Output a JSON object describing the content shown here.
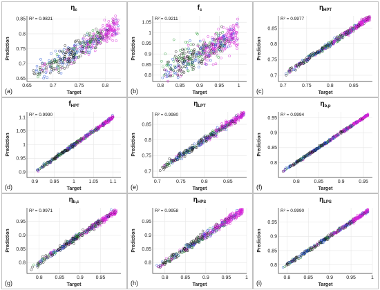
{
  "figure": {
    "background": "#ffffff"
  },
  "legend_colors": [
    "#1a1a1a",
    "#1f4fd1",
    "#2e9e3a",
    "#d61fd6"
  ],
  "chart_data": [
    {
      "type": "scatter",
      "panel": "(a)",
      "title_main": "η",
      "title_sub": "c",
      "r2": "R² = 0.9821",
      "xlabel": "Target",
      "ylabel": "Prediction",
      "xlim": [
        0.65,
        0.83
      ],
      "ylim": [
        0.64,
        0.86
      ],
      "xticks": [
        0.65,
        0.7,
        0.75,
        0.8
      ],
      "yticks": [
        0.65,
        0.7,
        0.75,
        0.8,
        0.85
      ],
      "xtick_labels": [
        "0.65",
        "0.7",
        "0.75",
        "0.8"
      ],
      "ytick_labels": [
        "0.65",
        "0.7",
        "0.75",
        "0.8",
        "0.85"
      ],
      "x_range": [
        0.66,
        0.825
      ],
      "spread": 0.018,
      "n_points": 460
    },
    {
      "type": "scatter",
      "panel": "(b)",
      "title_main": "f",
      "title_sub": "c",
      "r2": "R² = 0.9211",
      "xlabel": "Target",
      "ylabel": "Prediction",
      "xlim": [
        0.78,
        1.02
      ],
      "ylim": [
        0.77,
        1.08
      ],
      "xticks": [
        0.8,
        0.85,
        0.9,
        0.95,
        1
      ],
      "yticks": [
        0.8,
        0.85,
        0.9,
        0.95,
        1,
        1.05
      ],
      "xtick_labels": [
        "0.8",
        "0.85",
        "0.9",
        "0.95",
        "1"
      ],
      "ytick_labels": [
        "0.8",
        "0.85",
        "0.9",
        "0.95",
        "1",
        "1.05"
      ],
      "x_range": [
        0.8,
        1.0
      ],
      "spread": 0.03,
      "n_points": 480,
      "outliers": true
    },
    {
      "type": "scatter",
      "panel": "(c)",
      "title_main": "η",
      "title_sub": "HPT",
      "r2": "R² = 0.9977",
      "xlabel": "Target",
      "ylabel": "Prediction",
      "xlim": [
        0.69,
        0.89
      ],
      "ylim": [
        0.68,
        0.89
      ],
      "xticks": [
        0.7,
        0.75,
        0.8,
        0.85
      ],
      "yticks": [
        0.7,
        0.75,
        0.8,
        0.85
      ],
      "xtick_labels": [
        "0.7",
        "0.75",
        "0.8",
        "0.85"
      ],
      "ytick_labels": [
        "0.7",
        "0.75",
        "0.8",
        "0.85"
      ],
      "x_range": [
        0.705,
        0.885
      ],
      "spread": 0.004,
      "n_points": 420
    },
    {
      "type": "scatter",
      "panel": "(d)",
      "title_main": "f",
      "title_sub": "HPT",
      "r2": "R² = 0.9990",
      "xlabel": "Target",
      "ylabel": "Prediction",
      "xlim": [
        0.88,
        1.12
      ],
      "ylim": [
        0.88,
        1.12
      ],
      "xticks": [
        0.9,
        0.95,
        1,
        1.05,
        1.1
      ],
      "yticks": [
        0.9,
        0.95,
        1,
        1.05,
        1.1
      ],
      "xtick_labels": [
        "0.9",
        "0.95",
        "1",
        "1.05",
        "1.1"
      ],
      "ytick_labels": [
        "0.9",
        "0.95",
        "1",
        "1.05",
        "1.1"
      ],
      "x_range": [
        0.9,
        1.1
      ],
      "spread": 0.003,
      "n_points": 420
    },
    {
      "type": "scatter",
      "panel": "(e)",
      "title_main": "η",
      "title_sub": "LPT",
      "r2": "R² = 0.9980",
      "xlabel": "Target",
      "ylabel": "Prediction",
      "xlim": [
        0.69,
        0.89
      ],
      "ylim": [
        0.68,
        0.89
      ],
      "xticks": [
        0.7,
        0.75,
        0.8,
        0.85
      ],
      "yticks": [
        0.7,
        0.75,
        0.8,
        0.85
      ],
      "xtick_labels": [
        "0.7",
        "0.75",
        "0.8",
        "0.85"
      ],
      "ytick_labels": [
        "0.7",
        "0.75",
        "0.8",
        "0.85"
      ],
      "x_range": [
        0.705,
        0.885
      ],
      "spread": 0.005,
      "n_points": 420
    },
    {
      "type": "scatter",
      "panel": "(f)",
      "title_main": "η",
      "title_sub": "b,p",
      "r2": "R² = 0.9994",
      "xlabel": "Target",
      "ylabel": "Prediction",
      "xlim": [
        0.76,
        0.97
      ],
      "ylim": [
        0.75,
        0.97
      ],
      "xticks": [
        0.8,
        0.85,
        0.9,
        0.95
      ],
      "yticks": [
        0.8,
        0.85,
        0.9,
        0.95
      ],
      "xtick_labels": [
        "0.8",
        "0.85",
        "0.9",
        "0.95"
      ],
      "ytick_labels": [
        "0.8",
        "0.85",
        "0.9",
        "0.95"
      ],
      "x_range": [
        0.77,
        0.96
      ],
      "spread": 0.002,
      "n_points": 420
    },
    {
      "type": "scatter",
      "panel": "(g)",
      "title_main": "η",
      "title_sub": "b,c",
      "r2": "R² = 0.9971",
      "xlabel": "Target",
      "ylabel": "Prediction",
      "xlim": [
        0.77,
        1.0
      ],
      "ylim": [
        0.76,
        1.0
      ],
      "xticks": [
        0.8,
        0.85,
        0.9,
        0.95
      ],
      "yticks": [
        0.8,
        0.85,
        0.9,
        0.95
      ],
      "xtick_labels": [
        "0.8",
        "0.85",
        "0.9",
        "0.95"
      ],
      "ytick_labels": [
        "0.8",
        "0.85",
        "0.9",
        "0.95"
      ],
      "x_range": [
        0.78,
        0.99
      ],
      "spread": 0.005,
      "n_points": 420
    },
    {
      "type": "scatter",
      "panel": "(h)",
      "title_main": "η",
      "title_sub": "HPS",
      "r2": "R² = 0.9958",
      "xlabel": "Target",
      "ylabel": "Prediction",
      "xlim": [
        0.77,
        1.0
      ],
      "ylim": [
        0.76,
        1.0
      ],
      "xticks": [
        0.8,
        0.85,
        0.9,
        0.95,
        1
      ],
      "yticks": [
        0.8,
        0.85,
        0.9,
        0.95
      ],
      "xtick_labels": [
        "0.8",
        "0.85",
        "0.9",
        "0.95",
        "1"
      ],
      "ytick_labels": [
        "0.8",
        "0.85",
        "0.9",
        "0.95"
      ],
      "x_range": [
        0.78,
        0.99
      ],
      "spread": 0.007,
      "n_points": 420
    },
    {
      "type": "scatter",
      "panel": "(i)",
      "title_main": "η",
      "title_sub": "LPS",
      "r2": "R² = 0.9990",
      "xlabel": "Target",
      "ylabel": "Prediction",
      "xlim": [
        0.78,
        1.0
      ],
      "ylim": [
        0.77,
        1.0
      ],
      "xticks": [
        0.8,
        0.85,
        0.9,
        0.95,
        1
      ],
      "yticks": [
        0.8,
        0.85,
        0.9,
        0.95
      ],
      "xtick_labels": [
        "0.8",
        "0.85",
        "0.9",
        "0.95",
        "1"
      ],
      "ytick_labels": [
        "0.8",
        "0.85",
        "0.9",
        "0.95"
      ],
      "x_range": [
        0.79,
        0.99
      ],
      "spread": 0.003,
      "n_points": 420
    }
  ]
}
